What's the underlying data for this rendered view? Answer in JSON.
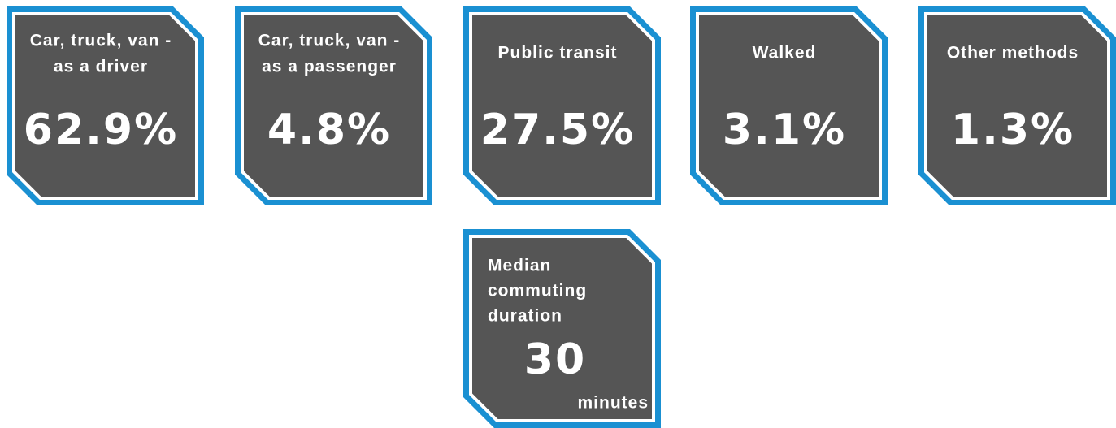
{
  "cards": [
    {
      "label": [
        "Car, truck, van -",
        "as a driver"
      ],
      "value": "62.9%"
    },
    {
      "label": [
        "Car, truck, van -",
        "as a passenger"
      ],
      "value": "4.8%"
    },
    {
      "label": [
        "Public transit"
      ],
      "value": "27.5%"
    },
    {
      "label": [
        "Walked"
      ],
      "value": "3.1%"
    },
    {
      "label": [
        "Other methods"
      ],
      "value": "1.3%"
    }
  ],
  "commute": {
    "label": [
      "Median",
      "commuting",
      "duration"
    ],
    "value": "30",
    "unit": "minutes"
  }
}
